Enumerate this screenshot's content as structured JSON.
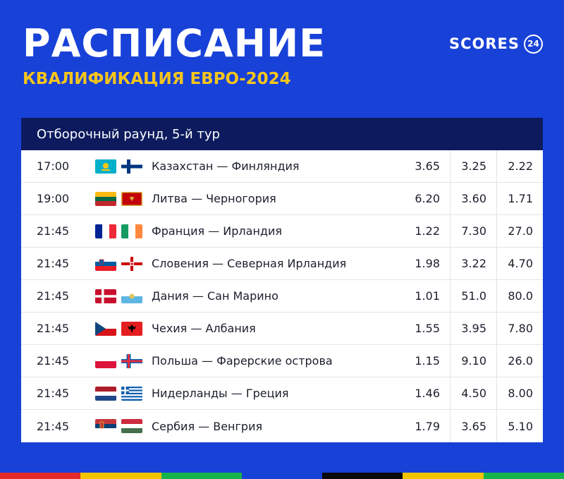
{
  "header": {
    "title": "РАСПИСАНИЕ",
    "subtitle": "КВАЛИФИКАЦИЯ ЕВРО-2024",
    "brand_text": "SCORES",
    "brand_badge": "24"
  },
  "panel": {
    "round": "Отборочный раунд, 5-й тур"
  },
  "matches": [
    {
      "time": "17:00",
      "match": "Казахстан — Финляндия",
      "home_flag": "flag-kazakhstan",
      "away_flag": "flag-finland",
      "odds": [
        "3.65",
        "3.25",
        "2.22"
      ]
    },
    {
      "time": "19:00",
      "match": "Литва — Черногория",
      "home_flag": "flag-lithuania",
      "away_flag": "flag-montenegro",
      "odds": [
        "6.20",
        "3.60",
        "1.71"
      ]
    },
    {
      "time": "21:45",
      "match": "Франция — Ирландия",
      "home_flag": "flag-france",
      "away_flag": "flag-ireland",
      "odds": [
        "1.22",
        "7.30",
        "27.0"
      ]
    },
    {
      "time": "21:45",
      "match": "Словения — Северная Ирландия",
      "home_flag": "flag-slovenia",
      "away_flag": "flag-northern-ireland",
      "odds": [
        "1.98",
        "3.22",
        "4.70"
      ]
    },
    {
      "time": "21:45",
      "match": "Дания — Сан Марино",
      "home_flag": "flag-denmark",
      "away_flag": "flag-san-marino",
      "odds": [
        "1.01",
        "51.0",
        "80.0"
      ]
    },
    {
      "time": "21:45",
      "match": "Чехия — Албания",
      "home_flag": "flag-czechia",
      "away_flag": "flag-albania",
      "odds": [
        "1.55",
        "3.95",
        "7.80"
      ]
    },
    {
      "time": "21:45",
      "match": "Польша — Фарерские острова",
      "home_flag": "flag-poland",
      "away_flag": "flag-faroe-islands",
      "odds": [
        "1.15",
        "9.10",
        "26.0"
      ]
    },
    {
      "time": "21:45",
      "match": "Нидерланды — Греция",
      "home_flag": "flag-netherlands",
      "away_flag": "flag-greece",
      "odds": [
        "1.46",
        "4.50",
        "8.00"
      ]
    },
    {
      "time": "21:45",
      "match": "Сербия — Венгрия",
      "home_flag": "flag-serbia",
      "away_flag": "flag-hungary",
      "odds": [
        "1.79",
        "3.65",
        "5.10"
      ]
    }
  ],
  "colors": {
    "background": "#1841d8",
    "subtitle": "#f6c51c",
    "panel_header": "#0d1b5e",
    "stripe": [
      "#e32b2b",
      "#f2c300",
      "#17b34b",
      "#1841d8",
      "#0a0a0a",
      "#f2c300",
      "#17b34b"
    ]
  }
}
